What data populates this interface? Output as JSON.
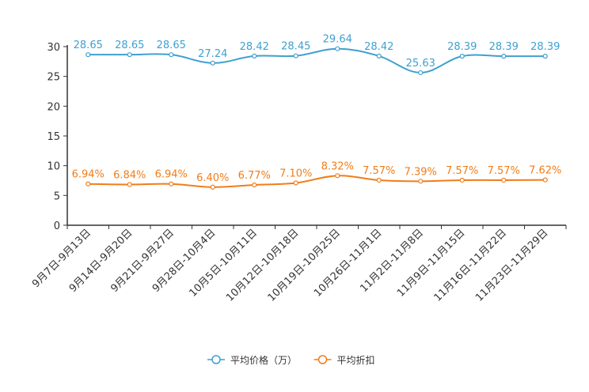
{
  "chart_data": {
    "type": "line",
    "categories": [
      "9月7日-9月13日",
      "9月14日-9月20日",
      "9月21日-9月27日",
      "9月28日-10月4日",
      "10月5日-10月11日",
      "10月12日-10月18日",
      "10月19日-10月25日",
      "10月26日-11月1日",
      "11月2日-11月8日",
      "11月9日-11月15日",
      "11月16日-11月22日",
      "11月23日-11月29日"
    ],
    "series": [
      {
        "name": "平均价格（万）",
        "color": "#3fa0d0",
        "values": [
          28.65,
          28.65,
          28.65,
          27.24,
          28.42,
          28.45,
          29.64,
          28.42,
          25.63,
          28.39,
          28.39,
          28.39
        ],
        "labels": [
          "28.65",
          "28.65",
          "28.65",
          "27.24",
          "28.42",
          "28.45",
          "29.64",
          "28.42",
          "25.63",
          "28.39",
          "28.39",
          "28.39"
        ]
      },
      {
        "name": "平均折扣",
        "color": "#f07d1a",
        "values": [
          6.94,
          6.84,
          6.94,
          6.4,
          6.77,
          7.1,
          8.32,
          7.57,
          7.39,
          7.57,
          7.57,
          7.62
        ],
        "labels": [
          "6.94%",
          "6.84%",
          "6.94%",
          "6.40%",
          "6.77%",
          "7.10%",
          "8.32%",
          "7.57%",
          "7.39%",
          "7.57%",
          "7.57%",
          "7.62%"
        ]
      }
    ],
    "y_ticks": [
      0,
      5,
      10,
      15,
      20,
      25,
      30
    ],
    "ylim": [
      0,
      30
    ],
    "grid": false,
    "legend_position": "bottom-center",
    "title": "",
    "xlabel": "",
    "ylabel": ""
  }
}
